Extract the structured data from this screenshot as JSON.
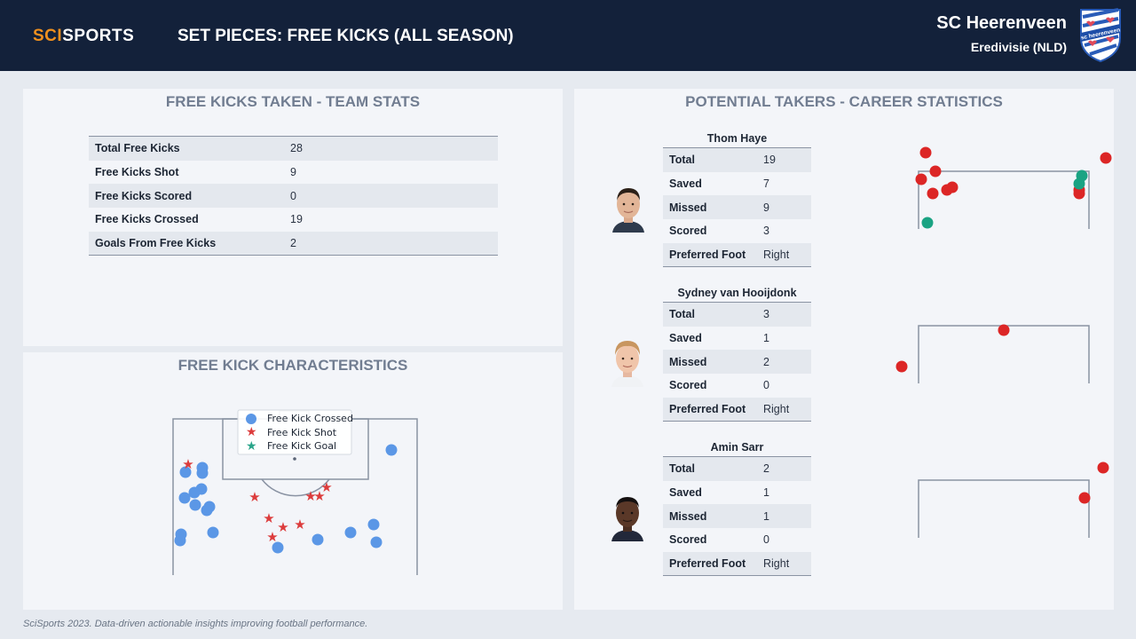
{
  "header": {
    "logo_part1": "SCI",
    "logo_part2": "SPORTS",
    "title": "SET PIECES: FREE KICKS (ALL SEASON)",
    "team": "SC Heerenveen",
    "league": "Eredivisie (NLD)",
    "crest_text": "sc heerenveen"
  },
  "colors": {
    "header_bg": "#13213a",
    "accent": "#f0901e",
    "crossed": "#5b97e6",
    "shot": "#dc3c3c",
    "goal": "#2aa58a",
    "panel_title": "#717d91"
  },
  "team_stats": {
    "title": "FREE KICKS TAKEN - TEAM STATS",
    "rows": [
      {
        "label": "Total Free Kicks",
        "value": "28"
      },
      {
        "label": "Free Kicks Shot",
        "value": "9"
      },
      {
        "label": "Free Kicks Scored",
        "value": "0"
      },
      {
        "label": "Free Kicks Crossed",
        "value": "19"
      },
      {
        "label": "Goals From Free Kicks",
        "value": "2"
      }
    ]
  },
  "characteristics": {
    "title": "FREE KICK CHARACTERISTICS",
    "legend": {
      "crossed": "Free Kick Crossed",
      "shot": "Free Kick Shot",
      "goal": "Free Kick Goal"
    }
  },
  "takers": {
    "title": "POTENTIAL TAKERS - CAREER STATISTICS",
    "players": [
      {
        "name": "Thom Haye",
        "rows": [
          {
            "label": "Total",
            "value": "19"
          },
          {
            "label": "Saved",
            "value": "7"
          },
          {
            "label": "Missed",
            "value": "9"
          },
          {
            "label": "Scored",
            "value": "3"
          },
          {
            "label": "Preferred Foot",
            "value": "Right"
          }
        ]
      },
      {
        "name": "Sydney van Hooijdonk",
        "rows": [
          {
            "label": "Total",
            "value": "3"
          },
          {
            "label": "Saved",
            "value": "1"
          },
          {
            "label": "Missed",
            "value": "2"
          },
          {
            "label": "Scored",
            "value": "0"
          },
          {
            "label": "Preferred Foot",
            "value": "Right"
          }
        ]
      },
      {
        "name": "Amin Sarr",
        "rows": [
          {
            "label": "Total",
            "value": "2"
          },
          {
            "label": "Saved",
            "value": "1"
          },
          {
            "label": "Missed",
            "value": "1"
          },
          {
            "label": "Scored",
            "value": "0"
          },
          {
            "label": "Preferred Foot",
            "value": "Right"
          }
        ]
      }
    ]
  },
  "footer": {
    "text": "SciSports 2023. Data-driven actionable insights improving football performance."
  }
}
